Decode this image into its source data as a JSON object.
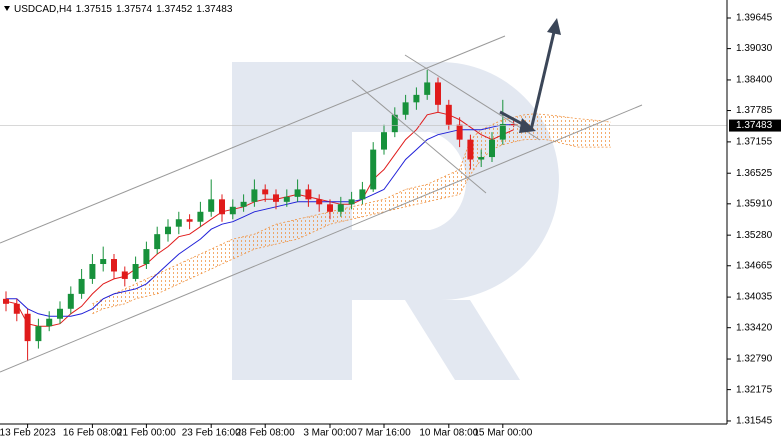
{
  "chart_data": {
    "type": "candlestick",
    "symbol": "USDCAD,H4",
    "categories": [
      null,
      null,
      "13 Feb 2023",
      null,
      null,
      null,
      null,
      null,
      "16 Feb 08:00",
      null,
      null,
      null,
      null,
      "21 Feb 00:00",
      null,
      null,
      null,
      null,
      null,
      "23 Feb 16:00",
      null,
      null,
      null,
      null,
      "28 Feb 08:00",
      null,
      null,
      null,
      null,
      null,
      "3 Mar 00:00",
      null,
      null,
      null,
      null,
      "7 Mar 16:00",
      null,
      null,
      null,
      null,
      null,
      "10 Mar 08:00",
      null,
      null,
      null,
      null,
      "15 Mar 00:00",
      null,
      null,
      null,
      null,
      null,
      null,
      null,
      null,
      null,
      null
    ],
    "open": [
      1.34,
      1.339,
      1.337,
      1.3315,
      1.3345,
      1.336,
      1.338,
      1.341,
      1.344,
      1.347,
      1.348,
      1.3455,
      1.344,
      1.347,
      1.35,
      1.353,
      1.3545,
      1.356,
      1.3555,
      1.3575,
      1.36,
      1.357,
      1.3585,
      1.3595,
      1.362,
      1.361,
      1.3595,
      1.3605,
      1.362,
      1.36,
      1.359,
      1.3575,
      1.359,
      1.36,
      1.362,
      1.37,
      1.3735,
      1.377,
      1.3795,
      1.381,
      1.3835,
      1.379,
      1.375,
      1.372,
      1.368,
      1.3685,
      1.372,
      1.37515,
      null,
      null,
      null,
      null,
      null,
      null,
      null,
      null,
      null
    ],
    "high": [
      1.3415,
      1.34,
      1.338,
      1.336,
      1.3375,
      1.3395,
      1.3425,
      1.346,
      1.349,
      1.3505,
      1.349,
      1.3465,
      1.3485,
      1.3515,
      1.3545,
      1.356,
      1.3575,
      1.357,
      1.3595,
      1.364,
      1.361,
      1.36,
      1.361,
      1.364,
      1.363,
      1.362,
      1.362,
      1.364,
      1.363,
      1.361,
      1.36,
      1.3605,
      1.3615,
      1.3635,
      1.3715,
      1.375,
      1.3785,
      1.381,
      1.3825,
      1.386,
      1.3845,
      1.38,
      1.3765,
      1.373,
      1.37,
      1.3735,
      1.38,
      1.37574,
      null,
      null,
      null,
      null,
      null,
      null,
      null,
      null,
      null
    ],
    "low": [
      1.3375,
      1.3355,
      1.3275,
      1.33,
      1.3335,
      1.335,
      1.337,
      1.34,
      1.343,
      1.3455,
      1.344,
      1.3425,
      1.3435,
      1.346,
      1.349,
      1.3515,
      1.353,
      1.354,
      1.3545,
      1.3565,
      1.3555,
      1.356,
      1.3575,
      1.3585,
      1.3595,
      1.358,
      1.3585,
      1.3595,
      1.3585,
      1.3575,
      1.356,
      1.3565,
      1.358,
      1.359,
      1.3615,
      1.369,
      1.3725,
      1.376,
      1.378,
      1.38,
      1.3775,
      1.374,
      1.3705,
      1.366,
      1.3665,
      1.3675,
      1.371,
      1.37452,
      null,
      null,
      null,
      null,
      null,
      null,
      null,
      null,
      null
    ],
    "close": [
      1.339,
      1.337,
      1.3315,
      1.3345,
      1.336,
      1.338,
      1.341,
      1.344,
      1.347,
      1.348,
      1.3455,
      1.344,
      1.347,
      1.35,
      1.353,
      1.3545,
      1.356,
      1.3555,
      1.3575,
      1.36,
      1.357,
      1.3585,
      1.3595,
      1.362,
      1.361,
      1.3595,
      1.3605,
      1.362,
      1.36,
      1.359,
      1.3575,
      1.359,
      1.36,
      1.362,
      1.37,
      1.3735,
      1.377,
      1.3795,
      1.381,
      1.3835,
      1.379,
      1.375,
      1.372,
      1.368,
      1.3685,
      1.372,
      1.37515,
      1.37483,
      null,
      null,
      null,
      null,
      null,
      null,
      null,
      null,
      null
    ],
    "up_color": "#17913b",
    "down_color": "#e01b1b",
    "lines": [
      {
        "color": "#e01b1b",
        "values": [
          1.3395,
          1.339,
          1.335,
          1.3345,
          1.3345,
          1.335,
          1.337,
          1.3385,
          1.341,
          1.343,
          1.344,
          1.3445,
          1.346,
          1.347,
          1.349,
          1.3505,
          1.3525,
          1.353,
          1.3545,
          1.356,
          1.3575,
          1.358,
          1.3585,
          1.3595,
          1.36,
          1.36,
          1.3605,
          1.361,
          1.3605,
          1.36,
          1.3595,
          1.359,
          1.359,
          1.36,
          1.364,
          1.366,
          1.369,
          1.372,
          1.374,
          1.377,
          1.3775,
          1.377,
          1.376,
          1.3745,
          1.373,
          1.372,
          1.373,
          1.374,
          null,
          null,
          null,
          null,
          null,
          null,
          null,
          null,
          null
        ]
      },
      {
        "color": "#2020d8",
        "values": [
          1.34,
          1.34,
          1.338,
          1.337,
          1.3365,
          1.3365,
          1.3365,
          1.337,
          1.338,
          1.34,
          1.341,
          1.3415,
          1.342,
          1.343,
          1.345,
          1.347,
          1.349,
          1.3505,
          1.352,
          1.354,
          1.355,
          1.3555,
          1.3565,
          1.3575,
          1.358,
          1.3585,
          1.359,
          1.3595,
          1.3595,
          1.3595,
          1.3595,
          1.3595,
          1.3595,
          1.36,
          1.361,
          1.362,
          1.365,
          1.368,
          1.37,
          1.372,
          1.373,
          1.3735,
          1.374,
          1.374,
          1.374,
          1.3745,
          1.375,
          1.375,
          null,
          null,
          null,
          null,
          null,
          null,
          null,
          null,
          null
        ]
      }
    ],
    "cloud": {
      "color": "#f0903c",
      "span_a": [
        null,
        null,
        null,
        null,
        null,
        null,
        null,
        null,
        1.339,
        1.34,
        1.341,
        1.342,
        1.343,
        1.344,
        1.345,
        1.346,
        1.347,
        1.348,
        1.349,
        1.35,
        1.351,
        1.352,
        1.3525,
        1.353,
        1.354,
        1.355,
        1.3555,
        1.356,
        1.3565,
        1.357,
        1.3575,
        1.358,
        1.3585,
        1.359,
        1.3595,
        1.36,
        1.361,
        1.362,
        1.3625,
        1.363,
        1.364,
        1.365,
        1.366,
        1.372,
        1.374,
        1.375,
        1.376,
        1.3765,
        1.377,
        1.3772,
        1.377,
        1.3768,
        1.3765,
        1.3762,
        1.376,
        1.3758,
        1.3755
      ],
      "span_b": [
        null,
        null,
        null,
        null,
        null,
        null,
        null,
        null,
        1.337,
        1.338,
        1.3385,
        1.339,
        1.34,
        1.3405,
        1.341,
        1.342,
        1.343,
        1.344,
        1.345,
        1.346,
        1.347,
        1.348,
        1.349,
        1.35,
        1.3505,
        1.351,
        1.3515,
        1.352,
        1.353,
        1.354,
        1.355,
        1.3555,
        1.356,
        1.3565,
        1.357,
        1.3575,
        1.358,
        1.3585,
        1.359,
        1.3595,
        1.36,
        1.3605,
        1.361,
        1.365,
        1.368,
        1.37,
        1.371,
        1.3715,
        1.372,
        1.372,
        1.372,
        1.3715,
        1.371,
        1.3705,
        1.3705,
        1.3705,
        1.3705
      ]
    },
    "ylim": [
      1.31484,
      1.40007
    ],
    "yticks": [
      1.39645,
      {
        "value": 1.3903,
        "label": "1.39030"
      },
      {
        "value": 1.384,
        "label": "1.38400"
      },
      1.37785,
      1.37155,
      1.36525,
      {
        "value": 1.3591,
        "label": "1.35910"
      },
      {
        "value": 1.3528,
        "label": "1.35280"
      },
      1.34665,
      1.34035,
      {
        "value": 1.3342,
        "label": "1.33420"
      },
      {
        "value": 1.3279,
        "label": "1.32790"
      },
      1.32175,
      1.31545
    ]
  }
}
